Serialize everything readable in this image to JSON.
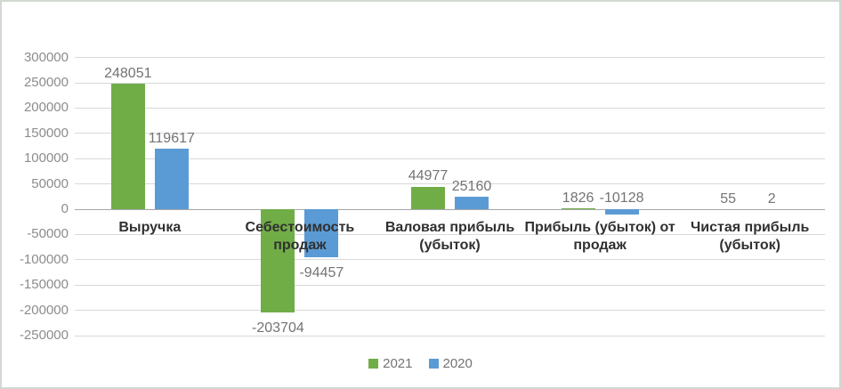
{
  "chart_data": {
    "type": "bar",
    "title": "",
    "xlabel": "",
    "ylabel": "",
    "categories": [
      "Выручка",
      "Себестоимость продаж",
      "Валовая прибыль (убыток)",
      "Прибыль (убыток) от продаж",
      "Чистая прибыль (убыток)"
    ],
    "series": [
      {
        "name": "2021",
        "color": "#70AD47",
        "values": [
          248051,
          -203704,
          44977,
          1826,
          55
        ]
      },
      {
        "name": "2020",
        "color": "#5B9BD5",
        "values": [
          119617,
          -94457,
          25160,
          -10128,
          2
        ]
      }
    ],
    "data_labels": [
      [
        "248051",
        "-203704",
        "44977",
        "1826",
        "55"
      ],
      [
        "119617",
        "-94457",
        "25160",
        "-10128",
        "2"
      ]
    ],
    "ylim": [
      -250000,
      300000
    ],
    "ytick_step": 50000,
    "yticks": [
      300000,
      250000,
      200000,
      150000,
      100000,
      50000,
      0,
      -50000,
      -100000,
      -150000,
      -200000,
      -250000
    ],
    "grid": true,
    "legend_position": "bottom"
  },
  "style": {
    "background": "#ffffff",
    "border_color": "#d2d8d2",
    "grid_color": "#d9d9d9",
    "zero_axis_color": "#a6a6a6",
    "axis_text_color": "#8c8c8c",
    "data_label_color": "#737373",
    "category_text_color": "#303030",
    "legend_text_color": "#737373",
    "series_2021_color": "#70AD47",
    "series_2020_color": "#5B9BD5"
  }
}
